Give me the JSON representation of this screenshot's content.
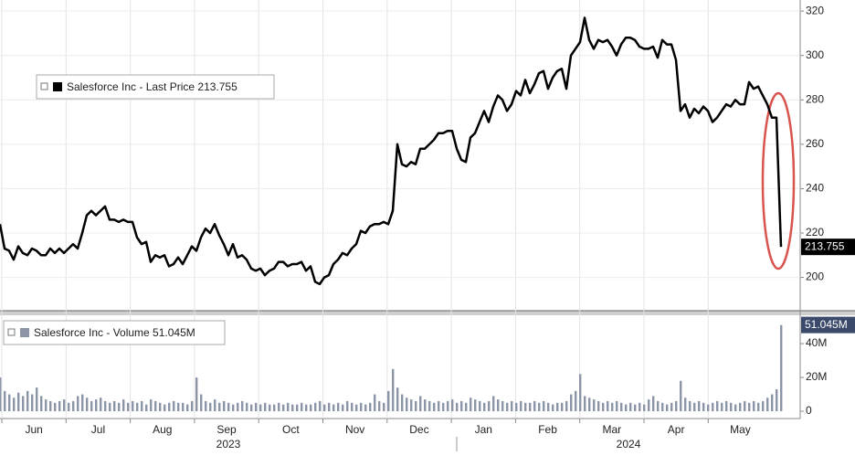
{
  "chart_data": [
    {
      "type": "line",
      "legend_text": "Salesforce Inc - Last Price 213.755",
      "last_label": "213.755",
      "series": [
        {
          "name": "Salesforce Inc - Last Price",
          "color": "#000000",
          "values": [
            224,
            213,
            212,
            208,
            214,
            211,
            210,
            213,
            212,
            210,
            210,
            213,
            211,
            213,
            211,
            213,
            215,
            213,
            220,
            228,
            230,
            228,
            230,
            232,
            226,
            226,
            225,
            226,
            225,
            225,
            218,
            215,
            216,
            207,
            210,
            209,
            210,
            205,
            206,
            209,
            206,
            210,
            214,
            212,
            218,
            222,
            220,
            224,
            219,
            215,
            210,
            215,
            209,
            210,
            208,
            204,
            203,
            204,
            201,
            203,
            204,
            207,
            207,
            205,
            206,
            206,
            207,
            203,
            205,
            198,
            197,
            200,
            201,
            206,
            208,
            211,
            210,
            213,
            215,
            221,
            220,
            223,
            224,
            224,
            225,
            224,
            230,
            260,
            251,
            250,
            252,
            251,
            258,
            258,
            260,
            262,
            265,
            265,
            266,
            266,
            258,
            253,
            252,
            263,
            265,
            270,
            275,
            270,
            277,
            282,
            280,
            275,
            278,
            284,
            282,
            289,
            283,
            287,
            292,
            293,
            285,
            290,
            293,
            294,
            285,
            300,
            303,
            306,
            317,
            307,
            303,
            307,
            306,
            307,
            304,
            300,
            305,
            308,
            308,
            307,
            304,
            303,
            303,
            304,
            299,
            307,
            305,
            305,
            298,
            275,
            278,
            272,
            276,
            274,
            277,
            275,
            270,
            272,
            275,
            278,
            277,
            280,
            278,
            278,
            288,
            285,
            286,
            282,
            278,
            272,
            272,
            213.755
          ]
        }
      ],
      "ylim": [
        185,
        325
      ],
      "yticks": [
        200,
        220,
        240,
        260,
        280,
        300,
        320
      ],
      "grid": true
    },
    {
      "type": "bar",
      "legend_text": "Salesforce Inc - Volume 51.045M",
      "last_label": "51.045M",
      "series": [
        {
          "name": "Salesforce Inc - Volume",
          "color": "#8c95a8",
          "values": [
            20,
            12,
            10,
            8,
            11,
            9,
            12,
            10,
            14,
            9,
            7,
            6,
            5,
            6,
            7,
            5,
            6,
            9,
            10,
            8,
            6,
            7,
            8,
            6,
            5,
            6,
            5,
            7,
            5,
            6,
            5,
            6,
            4,
            7,
            6,
            5,
            4,
            5,
            6,
            5,
            5,
            4,
            6,
            20,
            10,
            6,
            5,
            7,
            5,
            6,
            5,
            4,
            5,
            6,
            5,
            4,
            5,
            4,
            5,
            4,
            4,
            5,
            4,
            5,
            4,
            4,
            5,
            4,
            4,
            5,
            6,
            4,
            5,
            4,
            5,
            4,
            6,
            5,
            4,
            5,
            4,
            5,
            10,
            6,
            5,
            12,
            25,
            14,
            10,
            8,
            7,
            6,
            9,
            7,
            6,
            5,
            6,
            5,
            6,
            7,
            5,
            6,
            5,
            8,
            7,
            6,
            5,
            6,
            9,
            7,
            6,
            5,
            6,
            5,
            6,
            5,
            5,
            6,
            5,
            6,
            5,
            4,
            5,
            5,
            6,
            10,
            12,
            22,
            9,
            8,
            7,
            6,
            5,
            6,
            5,
            6,
            5,
            4,
            5,
            4,
            5,
            4,
            7,
            9,
            6,
            5,
            4,
            5,
            6,
            18,
            8,
            6,
            5,
            6,
            5,
            4,
            5,
            6,
            5,
            6,
            5,
            4,
            5,
            6,
            5,
            6,
            5,
            6,
            8,
            10,
            13,
            51.045
          ]
        }
      ],
      "ylim": [
        -4.3,
        55.7
      ],
      "yticks": [
        0,
        {
          "value": 20,
          "label": "20M"
        },
        {
          "value": 40,
          "label": "40M"
        }
      ],
      "months": [
        "Jun",
        "Jul",
        "Aug",
        "Sep",
        "Oct",
        "Nov",
        "Dec",
        "Jan",
        "Feb",
        "Mar",
        "Apr",
        "May"
      ],
      "years": [
        "2023",
        "2024"
      ]
    }
  ]
}
